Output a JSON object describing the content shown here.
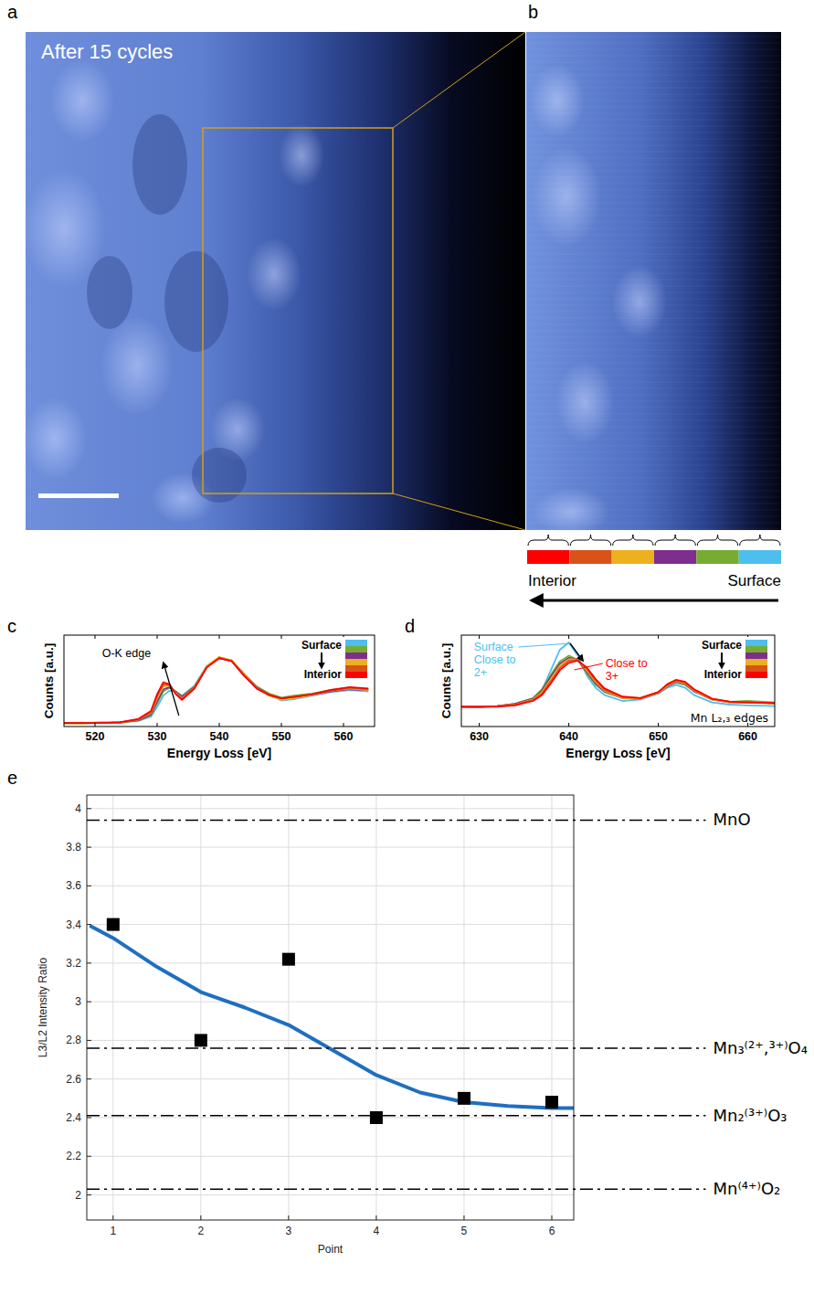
{
  "figure": {
    "a": {
      "panel": "a",
      "text": "After 15 cycles"
    },
    "b": {
      "panel": "b",
      "left_label": "Interior",
      "right_label": "Surface"
    }
  },
  "chart_data": [
    {
      "panel": "c",
      "type": "line",
      "x_label": "Energy Loss [eV]",
      "y_label": "Counts [a.u.]",
      "xlim": [
        515,
        565
      ],
      "xticks": [
        520,
        530,
        540,
        550,
        560
      ],
      "ylim": [
        0,
        1.3
      ],
      "tick_labels": "x",
      "legend": "upper right",
      "legend_labels": [
        "Surface",
        "Interior"
      ],
      "x": [
        515,
        518,
        521,
        524,
        527,
        529,
        530,
        531,
        532,
        533,
        534,
        536,
        538,
        540,
        542,
        544,
        546,
        548,
        550,
        552,
        555,
        558,
        561,
        564
      ],
      "series": [
        {
          "color": "#4dbeee",
          "values": [
            0.05,
            0.04,
            0.05,
            0.06,
            0.08,
            0.14,
            0.28,
            0.44,
            0.51,
            0.5,
            0.44,
            0.58,
            0.86,
            0.98,
            0.93,
            0.74,
            0.56,
            0.45,
            0.37,
            0.39,
            0.44,
            0.49,
            0.52,
            0.5
          ]
        },
        {
          "color": "#77ac30",
          "values": [
            0.04,
            0.05,
            0.06,
            0.05,
            0.09,
            0.16,
            0.33,
            0.5,
            0.55,
            0.5,
            0.43,
            0.57,
            0.85,
            0.97,
            0.94,
            0.75,
            0.57,
            0.47,
            0.41,
            0.44,
            0.47,
            0.52,
            0.55,
            0.53
          ]
        },
        {
          "color": "#7e2f8e",
          "values": [
            0.05,
            0.05,
            0.05,
            0.06,
            0.09,
            0.17,
            0.36,
            0.53,
            0.56,
            0.49,
            0.42,
            0.56,
            0.85,
            0.98,
            0.93,
            0.74,
            0.56,
            0.45,
            0.39,
            0.41,
            0.45,
            0.5,
            0.53,
            0.52
          ]
        },
        {
          "color": "#edb120",
          "values": [
            0.05,
            0.04,
            0.06,
            0.06,
            0.1,
            0.19,
            0.4,
            0.57,
            0.58,
            0.48,
            0.4,
            0.55,
            0.86,
            0.99,
            0.94,
            0.74,
            0.55,
            0.44,
            0.38,
            0.4,
            0.45,
            0.51,
            0.54,
            0.52
          ]
        },
        {
          "color": "#d95319",
          "values": [
            0.05,
            0.05,
            0.05,
            0.06,
            0.1,
            0.2,
            0.43,
            0.6,
            0.59,
            0.47,
            0.39,
            0.55,
            0.85,
            0.98,
            0.93,
            0.73,
            0.55,
            0.45,
            0.4,
            0.42,
            0.46,
            0.51,
            0.55,
            0.53
          ]
        },
        {
          "color": "#ff0000",
          "values": [
            0.05,
            0.05,
            0.05,
            0.06,
            0.11,
            0.22,
            0.46,
            0.63,
            0.6,
            0.46,
            0.38,
            0.54,
            0.84,
            0.97,
            0.93,
            0.72,
            0.54,
            0.45,
            0.4,
            0.42,
            0.46,
            0.52,
            0.56,
            0.54
          ]
        }
      ],
      "annotations": [
        {
          "text": "O-K edge",
          "color": "#000000"
        }
      ]
    },
    {
      "panel": "d",
      "type": "line",
      "x_label": "Energy Loss [eV]",
      "y_label": "Counts [a.u.]",
      "xlim": [
        628,
        663
      ],
      "xticks": [
        630,
        640,
        650,
        660
      ],
      "ylim": [
        -0.15,
        1.1
      ],
      "tick_labels": "x",
      "legend": "upper right",
      "legend_labels": [
        "Surface",
        "Interior"
      ],
      "x": [
        628,
        630,
        632,
        634,
        636,
        637,
        638,
        639,
        640,
        641,
        642,
        643,
        644,
        646,
        648,
        650,
        651,
        652,
        653,
        654,
        656,
        658,
        660,
        663
      ],
      "series": [
        {
          "color": "#4dbeee",
          "values": [
            0.12,
            0.12,
            0.13,
            0.15,
            0.22,
            0.35,
            0.62,
            0.9,
            1.0,
            0.82,
            0.55,
            0.38,
            0.28,
            0.2,
            0.22,
            0.3,
            0.38,
            0.42,
            0.38,
            0.28,
            0.18,
            0.15,
            0.14,
            0.13
          ]
        },
        {
          "color": "#77ac30",
          "values": [
            0.12,
            0.11,
            0.13,
            0.16,
            0.24,
            0.36,
            0.56,
            0.74,
            0.82,
            0.76,
            0.58,
            0.42,
            0.32,
            0.24,
            0.24,
            0.32,
            0.4,
            0.45,
            0.42,
            0.33,
            0.22,
            0.19,
            0.2,
            0.18
          ]
        },
        {
          "color": "#7e2f8e",
          "values": [
            0.12,
            0.12,
            0.13,
            0.16,
            0.23,
            0.34,
            0.53,
            0.71,
            0.79,
            0.77,
            0.6,
            0.44,
            0.33,
            0.24,
            0.23,
            0.31,
            0.4,
            0.46,
            0.43,
            0.33,
            0.22,
            0.18,
            0.18,
            0.17
          ]
        },
        {
          "color": "#edb120",
          "values": [
            0.12,
            0.12,
            0.13,
            0.15,
            0.22,
            0.32,
            0.5,
            0.68,
            0.77,
            0.77,
            0.62,
            0.46,
            0.34,
            0.24,
            0.23,
            0.31,
            0.41,
            0.47,
            0.44,
            0.34,
            0.22,
            0.18,
            0.18,
            0.16
          ]
        },
        {
          "color": "#d95319",
          "values": [
            0.12,
            0.12,
            0.13,
            0.15,
            0.21,
            0.3,
            0.47,
            0.65,
            0.75,
            0.76,
            0.64,
            0.48,
            0.35,
            0.25,
            0.24,
            0.32,
            0.42,
            0.48,
            0.45,
            0.35,
            0.23,
            0.19,
            0.18,
            0.17
          ]
        },
        {
          "color": "#ff0000",
          "values": [
            0.12,
            0.12,
            0.12,
            0.14,
            0.2,
            0.28,
            0.44,
            0.62,
            0.72,
            0.75,
            0.66,
            0.5,
            0.37,
            0.26,
            0.24,
            0.32,
            0.43,
            0.49,
            0.46,
            0.36,
            0.23,
            0.19,
            0.18,
            0.17
          ]
        }
      ],
      "annotations": [
        {
          "text": "Surface Close to 2+",
          "color": "#4dbeee"
        },
        {
          "text": "Close to 3+",
          "color": "#ff0000"
        },
        {
          "text": "Mn L₂,₃ edges",
          "color": "#000000"
        }
      ]
    },
    {
      "panel": "e",
      "type": "scatter",
      "x_label": "Point",
      "y_label": "L3/L2 Intensity Ratio",
      "xlim": [
        0.7,
        6.25
      ],
      "xticks": [
        1,
        2,
        3,
        4,
        5,
        6
      ],
      "ylim": [
        1.87,
        4.07
      ],
      "yticks": [
        2,
        2.2,
        2.4,
        2.6,
        2.8,
        3,
        3.2,
        3.4,
        3.6,
        3.8,
        4
      ],
      "grid": true,
      "series": [
        {
          "type": "scatter",
          "marker": "square",
          "color": "#000000",
          "x": [
            1,
            2,
            3,
            4,
            5,
            6
          ],
          "values": [
            3.4,
            2.8,
            3.22,
            2.4,
            2.5,
            2.48
          ]
        },
        {
          "type": "line",
          "color": "#1f6fc0",
          "x": [
            0.75,
            1,
            1.5,
            2,
            2.5,
            3,
            3.5,
            4,
            4.5,
            5,
            5.5,
            6,
            6.25
          ],
          "values": [
            3.39,
            3.33,
            3.18,
            3.05,
            2.97,
            2.88,
            2.75,
            2.62,
            2.53,
            2.48,
            2.46,
            2.45,
            2.45
          ]
        }
      ],
      "reference_lines": [
        {
          "value": 3.94,
          "label": "MnO",
          "line_style": "dashdot"
        },
        {
          "value": 2.76,
          "label": "Mn₃⁽²⁺,³⁺⁾O₄",
          "line_style": "dashdot"
        },
        {
          "value": 2.41,
          "label": "Mn₂⁽³⁺⁾O₃",
          "line_style": "dashdot"
        },
        {
          "value": 2.03,
          "label": "Mn⁽⁴⁺⁾O₂",
          "line_style": "dashdot"
        }
      ]
    }
  ]
}
